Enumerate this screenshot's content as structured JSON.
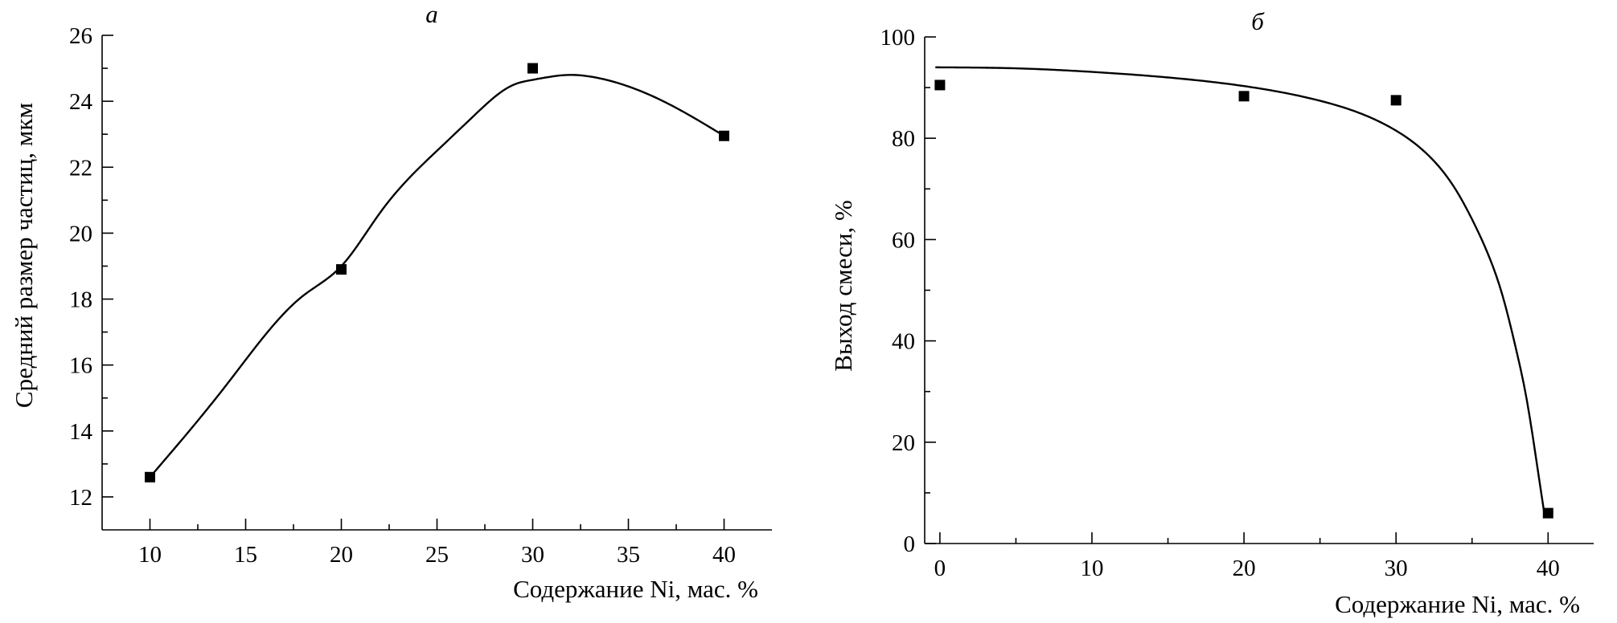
{
  "chart_data": [
    {
      "type": "scatter",
      "title": "a",
      "xlabel": "Содержание Ni, мас. %",
      "ylabel": "Средний размер частиц, мкм",
      "xlim": [
        7.5,
        42.5
      ],
      "ylim": [
        11,
        26
      ],
      "xticks": [
        10,
        15,
        20,
        25,
        30,
        35,
        40
      ],
      "yticks": [
        12,
        14,
        16,
        18,
        20,
        22,
        24,
        26
      ],
      "grid": false,
      "legend": "none",
      "series": [
        {
          "x": [
            10,
            20,
            30,
            40
          ],
          "y": [
            12.6,
            18.9,
            25.0,
            22.95
          ]
        }
      ],
      "fit_curve": {
        "x": [
          10,
          14,
          18,
          20,
          22,
          25,
          27,
          29,
          30,
          31,
          32,
          33,
          35,
          37,
          40
        ],
        "y": [
          12.6,
          15.4,
          18.1,
          19.0,
          20.6,
          22.5,
          23.6,
          24.5,
          24.65,
          24.75,
          24.8,
          24.75,
          24.45,
          23.95,
          22.95
        ]
      }
    },
    {
      "type": "scatter",
      "title": "б",
      "xlabel": "Содержание Ni, мас. %",
      "ylabel": "Выход смеси, %",
      "xlim": [
        -1,
        43
      ],
      "ylim": [
        0,
        100
      ],
      "xticks": [
        0,
        10,
        20,
        30,
        40
      ],
      "yticks": [
        0,
        20,
        40,
        60,
        80,
        100
      ],
      "grid": false,
      "legend": "none",
      "series": [
        {
          "x": [
            0,
            20,
            30,
            40
          ],
          "y": [
            90.5,
            88.3,
            87.5,
            6
          ]
        }
      ],
      "fit_curve": {
        "x": [
          -0.3,
          5,
          10,
          15,
          20,
          25,
          28,
          30,
          32,
          34,
          35,
          36,
          37,
          38,
          38.5,
          39,
          39.3,
          39.6,
          39.8
        ],
        "y": [
          94,
          93.8,
          93.1,
          92.0,
          90.3,
          87.4,
          84.5,
          81.5,
          77.0,
          69.5,
          64.0,
          57.5,
          49.0,
          37.0,
          30.0,
          21.0,
          15.0,
          9.0,
          5.0
        ]
      }
    }
  ]
}
